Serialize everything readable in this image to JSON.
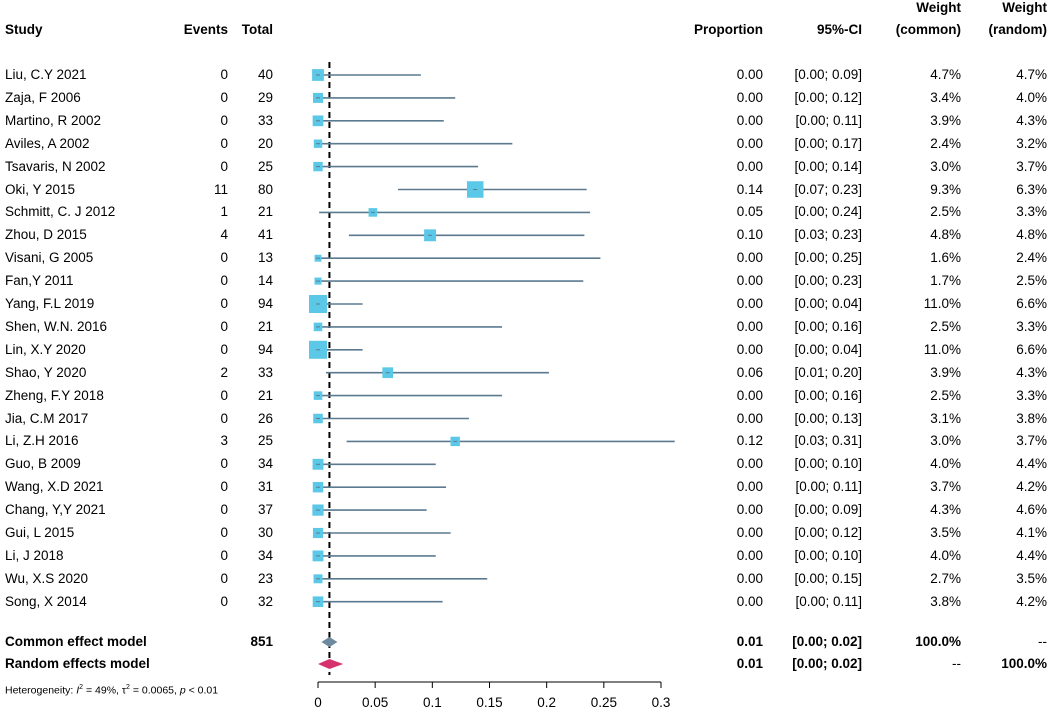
{
  "headers": {
    "study": "Study",
    "events": "Events",
    "total": "Total",
    "proportion": "Proportion",
    "ci": "95%-CI",
    "weight_common": [
      "Weight",
      "(common)"
    ],
    "weight_random": [
      "Weight",
      "(random)"
    ]
  },
  "studies": [
    {
      "name": "Liu, C.Y 2021",
      "events": "0",
      "total": "40",
      "prop": "0.00",
      "ci": "[0.00; 0.09]",
      "wc": "4.7%",
      "wr": "4.7%"
    },
    {
      "name": "Zaja, F 2006",
      "events": "0",
      "total": "29",
      "prop": "0.00",
      "ci": "[0.00; 0.12]",
      "wc": "3.4%",
      "wr": "4.0%"
    },
    {
      "name": "Martino, R 2002",
      "events": "0",
      "total": "33",
      "prop": "0.00",
      "ci": "[0.00; 0.11]",
      "wc": "3.9%",
      "wr": "4.3%"
    },
    {
      "name": "Aviles, A 2002",
      "events": "0",
      "total": "20",
      "prop": "0.00",
      "ci": "[0.00; 0.17]",
      "wc": "2.4%",
      "wr": "3.2%"
    },
    {
      "name": "Tsavaris, N 2002",
      "events": "0",
      "total": "25",
      "prop": "0.00",
      "ci": "[0.00; 0.14]",
      "wc": "3.0%",
      "wr": "3.7%"
    },
    {
      "name": "Oki, Y 2015",
      "events": "11",
      "total": "80",
      "prop": "0.14",
      "ci": "[0.07; 0.23]",
      "wc": "9.3%",
      "wr": "6.3%"
    },
    {
      "name": "Schmitt, C. J 2012",
      "events": "1",
      "total": "21",
      "prop": "0.05",
      "ci": "[0.00; 0.24]",
      "wc": "2.5%",
      "wr": "3.3%"
    },
    {
      "name": "Zhou, D 2015",
      "events": "4",
      "total": "41",
      "prop": "0.10",
      "ci": "[0.03; 0.23]",
      "wc": "4.8%",
      "wr": "4.8%"
    },
    {
      "name": "Visani, G 2005",
      "events": "0",
      "total": "13",
      "prop": "0.00",
      "ci": "[0.00; 0.25]",
      "wc": "1.6%",
      "wr": "2.4%"
    },
    {
      "name": "Fan,Y 2011",
      "events": "0",
      "total": "14",
      "prop": "0.00",
      "ci": "[0.00; 0.23]",
      "wc": "1.7%",
      "wr": "2.5%"
    },
    {
      "name": "Yang, F.L 2019",
      "events": "0",
      "total": "94",
      "prop": "0.00",
      "ci": "[0.00; 0.04]",
      "wc": "11.0%",
      "wr": "6.6%"
    },
    {
      "name": "Shen, W.N. 2016",
      "events": "0",
      "total": "21",
      "prop": "0.00",
      "ci": "[0.00; 0.16]",
      "wc": "2.5%",
      "wr": "3.3%"
    },
    {
      "name": "Lin, X.Y 2020",
      "events": "0",
      "total": "94",
      "prop": "0.00",
      "ci": "[0.00; 0.04]",
      "wc": "11.0%",
      "wr": "6.6%"
    },
    {
      "name": "Shao, Y 2020",
      "events": "2",
      "total": "33",
      "prop": "0.06",
      "ci": "[0.01; 0.20]",
      "wc": "3.9%",
      "wr": "4.3%"
    },
    {
      "name": "Zheng, F.Y 2018",
      "events": "0",
      "total": "21",
      "prop": "0.00",
      "ci": "[0.00; 0.16]",
      "wc": "2.5%",
      "wr": "3.3%"
    },
    {
      "name": "Jia, C.M 2017",
      "events": "0",
      "total": "26",
      "prop": "0.00",
      "ci": "[0.00; 0.13]",
      "wc": "3.1%",
      "wr": "3.8%"
    },
    {
      "name": "Li, Z.H 2016",
      "events": "3",
      "total": "25",
      "prop": "0.12",
      "ci": "[0.03; 0.31]",
      "wc": "3.0%",
      "wr": "3.7%"
    },
    {
      "name": "Guo, B 2009",
      "events": "0",
      "total": "34",
      "prop": "0.00",
      "ci": "[0.00; 0.10]",
      "wc": "4.0%",
      "wr": "4.4%"
    },
    {
      "name": "Wang, X.D 2021",
      "events": "0",
      "total": "31",
      "prop": "0.00",
      "ci": "[0.00; 0.11]",
      "wc": "3.7%",
      "wr": "4.2%"
    },
    {
      "name": "Chang, Y,Y 2021",
      "events": "0",
      "total": "37",
      "prop": "0.00",
      "ci": "[0.00; 0.09]",
      "wc": "4.3%",
      "wr": "4.6%"
    },
    {
      "name": "Gui, L 2015",
      "events": "0",
      "total": "30",
      "prop": "0.00",
      "ci": "[0.00; 0.12]",
      "wc": "3.5%",
      "wr": "4.1%"
    },
    {
      "name": "Li, J 2018",
      "events": "0",
      "total": "34",
      "prop": "0.00",
      "ci": "[0.00; 0.10]",
      "wc": "4.0%",
      "wr": "4.4%"
    },
    {
      "name": "Wu, X.S 2020",
      "events": "0",
      "total": "23",
      "prop": "0.00",
      "ci": "[0.00; 0.15]",
      "wc": "2.7%",
      "wr": "3.5%"
    },
    {
      "name": "Song, X 2014",
      "events": "0",
      "total": "32",
      "prop": "0.00",
      "ci": "[0.00; 0.11]",
      "wc": "3.8%",
      "wr": "4.2%"
    }
  ],
  "common": {
    "label": "Common effect model",
    "total": "851",
    "prop": "0.01",
    "ci": "[0.00; 0.02]",
    "wc": "100.0%",
    "wr": "--"
  },
  "random": {
    "label": "Random effects model",
    "prop": "0.01",
    "ci": "[0.00; 0.02]",
    "wc": "--",
    "wr": "100.0%"
  },
  "heterogeneity": {
    "prefix": "Heterogeneity: ",
    "i2_label": "I",
    "i2_sup": "2",
    "i2_value": " = 49%, ",
    "tau_label": "τ",
    "tau_sup": "2",
    "tau_value": " = 0.0065, ",
    "p_label": "p",
    "p_value": " < 0.01"
  },
  "chart_data": {
    "type": "forest",
    "xlim": [
      0,
      0.3
    ],
    "ticks": [
      0,
      0.05,
      0.1,
      0.15,
      0.2,
      0.25,
      0.3
    ],
    "tick_labels": [
      "0",
      "0.05",
      "0.1",
      "0.15",
      "0.2",
      "0.25",
      "0.3"
    ],
    "reference_line": 0.01,
    "series": [
      {
        "name": "Liu, C.Y 2021",
        "est": 0.0,
        "lo": 0.0,
        "hi": 0.09,
        "weight": 4.7
      },
      {
        "name": "Zaja, F 2006",
        "est": 0.0,
        "lo": 0.0,
        "hi": 0.12,
        "weight": 3.4
      },
      {
        "name": "Martino, R 2002",
        "est": 0.0,
        "lo": 0.0,
        "hi": 0.11,
        "weight": 3.9
      },
      {
        "name": "Aviles, A 2002",
        "est": 0.0,
        "lo": 0.0,
        "hi": 0.17,
        "weight": 2.4
      },
      {
        "name": "Tsavaris, N 2002",
        "est": 0.0,
        "lo": 0.0,
        "hi": 0.14,
        "weight": 3.0
      },
      {
        "name": "Oki, Y 2015",
        "est": 0.1375,
        "lo": 0.07,
        "hi": 0.235,
        "weight": 9.3
      },
      {
        "name": "Schmitt, C. J 2012",
        "est": 0.048,
        "lo": 0.001,
        "hi": 0.238,
        "weight": 2.5
      },
      {
        "name": "Zhou, D 2015",
        "est": 0.098,
        "lo": 0.027,
        "hi": 0.233,
        "weight": 4.8
      },
      {
        "name": "Visani, G 2005",
        "est": 0.0,
        "lo": 0.0,
        "hi": 0.247,
        "weight": 1.6
      },
      {
        "name": "Fan,Y 2011",
        "est": 0.0,
        "lo": 0.0,
        "hi": 0.232,
        "weight": 1.7
      },
      {
        "name": "Yang, F.L 2019",
        "est": 0.0,
        "lo": 0.0,
        "hi": 0.039,
        "weight": 11.0
      },
      {
        "name": "Shen, W.N. 2016",
        "est": 0.0,
        "lo": 0.0,
        "hi": 0.161,
        "weight": 2.5
      },
      {
        "name": "Lin, X.Y 2020",
        "est": 0.0,
        "lo": 0.0,
        "hi": 0.039,
        "weight": 11.0
      },
      {
        "name": "Shao, Y 2020",
        "est": 0.061,
        "lo": 0.007,
        "hi": 0.202,
        "weight": 3.9
      },
      {
        "name": "Zheng, F.Y 2018",
        "est": 0.0,
        "lo": 0.0,
        "hi": 0.161,
        "weight": 2.5
      },
      {
        "name": "Jia, C.M 2017",
        "est": 0.0,
        "lo": 0.0,
        "hi": 0.132,
        "weight": 3.1
      },
      {
        "name": "Li, Z.H 2016",
        "est": 0.12,
        "lo": 0.025,
        "hi": 0.312,
        "weight": 3.0
      },
      {
        "name": "Guo, B 2009",
        "est": 0.0,
        "lo": 0.0,
        "hi": 0.103,
        "weight": 4.0
      },
      {
        "name": "Wang, X.D 2021",
        "est": 0.0,
        "lo": 0.0,
        "hi": 0.112,
        "weight": 3.7
      },
      {
        "name": "Chang, Y,Y 2021",
        "est": 0.0,
        "lo": 0.0,
        "hi": 0.095,
        "weight": 4.3
      },
      {
        "name": "Gui, L 2015",
        "est": 0.0,
        "lo": 0.0,
        "hi": 0.116,
        "weight": 3.5
      },
      {
        "name": "Li, J 2018",
        "est": 0.0,
        "lo": 0.0,
        "hi": 0.103,
        "weight": 4.0
      },
      {
        "name": "Wu, X.S 2020",
        "est": 0.0,
        "lo": 0.0,
        "hi": 0.148,
        "weight": 2.7
      },
      {
        "name": "Song, X 2014",
        "est": 0.0,
        "lo": 0.0,
        "hi": 0.109,
        "weight": 3.8
      }
    ],
    "summaries": [
      {
        "name": "Common effect model",
        "est": 0.01,
        "lo": 0.003,
        "hi": 0.017
      },
      {
        "name": "Random effects model",
        "est": 0.01,
        "lo": 0.0,
        "hi": 0.022
      }
    ],
    "colors": {
      "box": "#5bc8e8",
      "line": "#5b7a90",
      "common_diamond": "#6e8a9e",
      "random_diamond": "#d6336c"
    }
  }
}
